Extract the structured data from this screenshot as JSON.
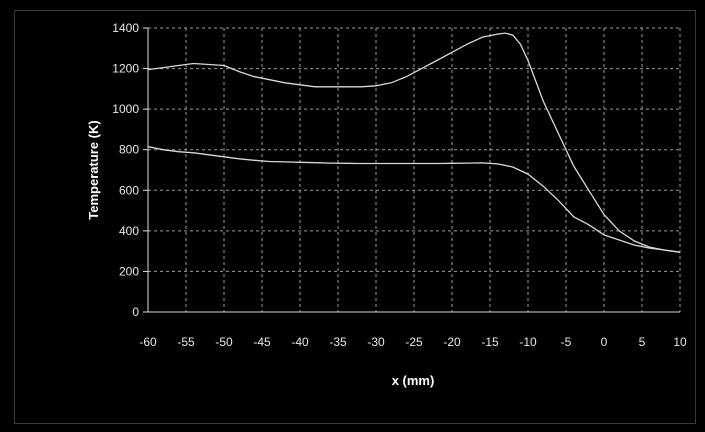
{
  "chart_data": {
    "type": "line",
    "title": "",
    "xlabel": "x (mm)",
    "ylabel": "Temperature (K)",
    "xlim": [
      -60,
      10
    ],
    "ylim": [
      0,
      1400
    ],
    "x_ticks": [
      -60,
      -55,
      -50,
      -45,
      -40,
      -35,
      -30,
      -25,
      -20,
      -15,
      -10,
      -5,
      0,
      5,
      10
    ],
    "x_tick_labels": [
      "-60",
      "-55",
      "-50",
      "-45",
      "-40",
      "-35",
      "-30",
      "-25",
      "-20",
      "-15",
      "-10",
      "-5",
      "0",
      "5",
      "10"
    ],
    "y_ticks": [
      0,
      200,
      400,
      600,
      800,
      1000,
      1200,
      1400
    ],
    "y_tick_labels": [
      "0",
      "200",
      "400",
      "600",
      "800",
      "1000",
      "1200",
      "1400"
    ],
    "grid": true,
    "legend": "none",
    "line_color": "#d8d8d8",
    "grid_color": "#9a9a9a",
    "series": [
      {
        "x": [
          -60,
          -58,
          -56,
          -54,
          -52,
          -50,
          -48,
          -46,
          -44,
          -42,
          -40,
          -38,
          -36,
          -34,
          -32,
          -30,
          -28,
          -26,
          -24,
          -22,
          -20,
          -18,
          -16,
          -14,
          -13,
          -12,
          -11,
          -10,
          -8,
          -6,
          -4,
          -2,
          0,
          2,
          4,
          6,
          8,
          10
        ],
        "y": [
          1195,
          1205,
          1215,
          1225,
          1220,
          1215,
          1185,
          1160,
          1145,
          1130,
          1120,
          1110,
          1110,
          1110,
          1110,
          1115,
          1130,
          1160,
          1200,
          1240,
          1280,
          1320,
          1355,
          1370,
          1375,
          1365,
          1320,
          1240,
          1040,
          880,
          720,
          600,
          480,
          400,
          350,
          320,
          305,
          295
        ]
      },
      {
        "x": [
          -60,
          -58,
          -56,
          -54,
          -52,
          -50,
          -48,
          -46,
          -44,
          -42,
          -40,
          -38,
          -36,
          -34,
          -32,
          -30,
          -28,
          -26,
          -24,
          -22,
          -20,
          -18,
          -16,
          -14,
          -12,
          -10,
          -8,
          -6,
          -4,
          -2,
          0,
          2,
          4,
          6,
          8,
          10
        ],
        "y": [
          815,
          800,
          790,
          785,
          775,
          765,
          755,
          748,
          742,
          740,
          738,
          736,
          734,
          733,
          732,
          732,
          732,
          732,
          732,
          732,
          733,
          734,
          735,
          730,
          715,
          680,
          620,
          550,
          470,
          430,
          380,
          355,
          330,
          315,
          305,
          295
        ]
      }
    ]
  }
}
